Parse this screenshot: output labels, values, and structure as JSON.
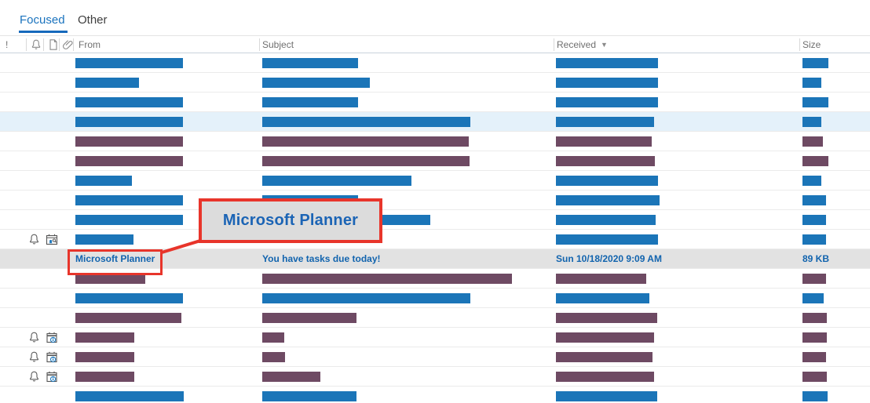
{
  "tabs": {
    "focused": "Focused",
    "other": "Other"
  },
  "header": {
    "importance_label": "!",
    "icons": [
      "reminder-bell-icon",
      "item-type-icon",
      "attachment-paperclip-icon"
    ],
    "from_label": "From",
    "subject_label": "Subject",
    "received_label": "Received",
    "received_sort": "descending",
    "sort_arrow_glyph": "▼",
    "size_label": "Size"
  },
  "callout": {
    "label": "Microsoft Planner"
  },
  "message_row": {
    "from": "Microsoft Planner",
    "subject": "You have tasks due today!",
    "received": "Sun 10/18/2020 9:09 AM",
    "size": "89 KB"
  },
  "colors": {
    "redacted_blue": "#1b75b8",
    "redacted_purple": "#6e4a63",
    "highlight_row_bg": "#e4f1fa",
    "selected_row_bg": "#e2e2e2",
    "annotation_red": "#e8352b",
    "accent_blue": "#1a73be"
  },
  "rows": [
    {
      "kind": "bars",
      "color": "blue",
      "from_w": 137,
      "subj_w": 122,
      "recv_w": 130,
      "size_w": 33
    },
    {
      "kind": "bars",
      "color": "blue",
      "from_w": 81,
      "subj_w": 137,
      "recv_w": 130,
      "size_w": 24
    },
    {
      "kind": "bars",
      "color": "blue",
      "from_w": 137,
      "subj_w": 122,
      "recv_w": 130,
      "size_w": 33
    },
    {
      "kind": "bars",
      "color": "blue",
      "from_w": 137,
      "subj_w": 265,
      "recv_w": 125,
      "size_w": 24,
      "bg": "highlight"
    },
    {
      "kind": "bars",
      "color": "purple",
      "from_w": 137,
      "subj_w": 263,
      "recv_w": 122,
      "size_w": 26
    },
    {
      "kind": "bars",
      "color": "purple",
      "from_w": 137,
      "subj_w": 264,
      "recv_w": 126,
      "size_w": 33
    },
    {
      "kind": "bars",
      "color": "blue",
      "from_w": 72,
      "subj_w": 190,
      "recv_w": 130,
      "size_w": 24
    },
    {
      "kind": "bars",
      "color": "blue",
      "from_w": 137,
      "subj_w": 122,
      "recv_w": 132,
      "size_w": 30
    },
    {
      "kind": "bars",
      "color": "blue",
      "from_w": 137,
      "subj_w": 214,
      "recv_w": 127,
      "size_w": 30
    },
    {
      "kind": "bars",
      "color": "blue",
      "from_w": 74,
      "subj_w": 0,
      "recv_w": 130,
      "size_w": 30,
      "icons": [
        "bell-icon",
        "calendar-search-icon"
      ]
    },
    {
      "kind": "message",
      "bg": "selected"
    },
    {
      "kind": "bars",
      "color": "purple",
      "from_w": 89,
      "subj_w": 318,
      "recv_w": 115,
      "size_w": 30
    },
    {
      "kind": "bars",
      "color": "blue",
      "from_w": 137,
      "subj_w": 265,
      "recv_w": 119,
      "size_w": 27
    },
    {
      "kind": "bars",
      "color": "purple",
      "from_w": 135,
      "subj_w": 120,
      "recv_w": 129,
      "size_w": 31
    },
    {
      "kind": "bars",
      "color": "purple",
      "from_w": 75,
      "subj_w": 28,
      "recv_w": 125,
      "size_w": 31,
      "icons": [
        "bell-icon",
        "calendar-info-icon"
      ]
    },
    {
      "kind": "bars",
      "color": "purple",
      "from_w": 75,
      "subj_w": 29,
      "recv_w": 123,
      "size_w": 30,
      "icons": [
        "bell-icon",
        "calendar-info-icon"
      ]
    },
    {
      "kind": "bars",
      "color": "purple",
      "from_w": 75,
      "subj_w": 74,
      "recv_w": 125,
      "size_w": 31,
      "icons": [
        "bell-icon",
        "calendar-info-icon"
      ]
    },
    {
      "kind": "bars",
      "color": "blue",
      "from_w": 138,
      "subj_w": 120,
      "recv_w": 129,
      "size_w": 32
    }
  ]
}
